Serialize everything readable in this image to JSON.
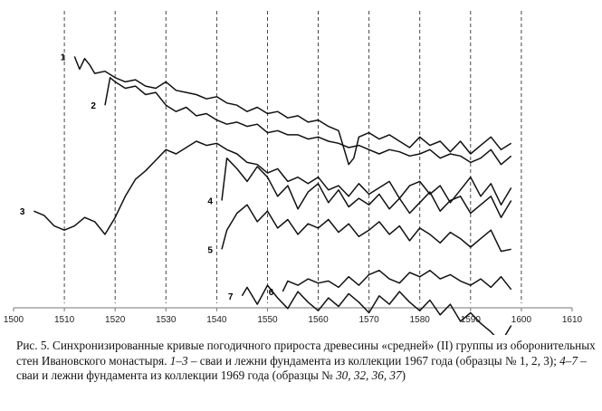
{
  "chart_data": {
    "type": "line",
    "title": "",
    "xlabel": "",
    "ylabel": "",
    "xlim": [
      1500,
      1610
    ],
    "x_ticks": [
      1500,
      1510,
      1520,
      1530,
      1540,
      1550,
      1560,
      1570,
      1580,
      1590,
      1600,
      1610
    ],
    "grid": "vertical dashed lines at each decade from 1510 to 1600",
    "legend": "none; series numbered inline next to their curves",
    "y_units": "relative ring-width index (curves vertically offset, no y axis printed)",
    "series": [
      {
        "label": "1",
        "x": [
          1512,
          1513,
          1514,
          1515,
          1516,
          1518,
          1520,
          1522,
          1524,
          1526,
          1528,
          1530,
          1532,
          1534,
          1536,
          1538,
          1540,
          1542,
          1544,
          1546,
          1548,
          1550,
          1552,
          1554,
          1556,
          1558,
          1560,
          1562,
          1564,
          1566,
          1567,
          1568,
          1570,
          1572,
          1574,
          1576,
          1578,
          1580,
          1582,
          1584,
          1586,
          1588,
          1590,
          1592,
          1594,
          1596,
          1598
        ],
        "y": [
          9.6,
          9.0,
          9.5,
          9.2,
          8.8,
          8.9,
          8.6,
          8.4,
          8.5,
          8.2,
          8.1,
          8.4,
          8.0,
          7.9,
          7.8,
          7.6,
          7.7,
          7.4,
          7.3,
          7.0,
          7.2,
          6.9,
          7.0,
          6.7,
          6.8,
          6.5,
          6.6,
          6.3,
          6.1,
          4.5,
          4.8,
          5.8,
          6.0,
          5.7,
          5.9,
          5.6,
          5.3,
          5.8,
          5.4,
          5.6,
          5.1,
          5.6,
          5.0,
          5.4,
          5.8,
          5.2,
          5.5
        ]
      },
      {
        "label": "2",
        "x": [
          1518,
          1519,
          1520,
          1522,
          1524,
          1526,
          1528,
          1530,
          1532,
          1534,
          1536,
          1538,
          1540,
          1542,
          1544,
          1546,
          1548,
          1550,
          1552,
          1554,
          1556,
          1558,
          1560,
          1562,
          1564,
          1566,
          1568,
          1570,
          1572,
          1574,
          1576,
          1578,
          1580,
          1582,
          1584,
          1586,
          1588,
          1590,
          1592,
          1594,
          1596,
          1598
        ],
        "y": [
          7.3,
          8.6,
          8.4,
          8.1,
          8.2,
          7.8,
          7.9,
          7.3,
          7.0,
          7.2,
          6.8,
          6.9,
          6.6,
          6.4,
          6.5,
          6.3,
          6.4,
          6.0,
          6.1,
          5.9,
          5.9,
          5.7,
          5.8,
          5.6,
          5.5,
          5.3,
          5.4,
          5.2,
          5.0,
          5.2,
          5.1,
          4.9,
          5.0,
          5.2,
          4.8,
          5.0,
          4.9,
          4.6,
          4.8,
          5.2,
          4.5,
          4.9
        ]
      },
      {
        "label": "3",
        "x": [
          1504,
          1506,
          1508,
          1510,
          1512,
          1514,
          1516,
          1518,
          1520,
          1522,
          1524,
          1526,
          1528,
          1530,
          1532,
          1534,
          1536,
          1538,
          1540,
          1542,
          1544,
          1546,
          1548,
          1550,
          1552,
          1554,
          1556,
          1558,
          1560,
          1562,
          1564,
          1566,
          1568,
          1570,
          1572,
          1574,
          1576,
          1578,
          1580,
          1582,
          1584,
          1586,
          1588,
          1590,
          1592,
          1594,
          1596,
          1598
        ],
        "y": [
          2.3,
          2.1,
          1.6,
          1.4,
          1.6,
          2.0,
          1.8,
          1.2,
          2.0,
          3.0,
          3.8,
          4.2,
          4.7,
          5.2,
          5.0,
          5.3,
          5.6,
          5.4,
          5.5,
          5.2,
          5.0,
          4.6,
          4.5,
          4.1,
          4.3,
          3.7,
          3.9,
          3.6,
          3.9,
          3.3,
          3.5,
          3.0,
          3.6,
          3.1,
          3.4,
          3.7,
          2.9,
          3.5,
          3.7,
          3.1,
          3.5,
          2.7,
          3.3,
          3.9,
          3.0,
          3.6,
          2.6,
          3.4
        ]
      },
      {
        "label": "4",
        "x": [
          1541,
          1542,
          1544,
          1546,
          1548,
          1550,
          1552,
          1554,
          1556,
          1558,
          1560,
          1562,
          1564,
          1566,
          1568,
          1570,
          1572,
          1574,
          1576,
          1578,
          1580,
          1582,
          1584,
          1586,
          1588,
          1590,
          1592,
          1594,
          1596,
          1598
        ],
        "y": [
          2.8,
          4.8,
          4.3,
          3.7,
          4.4,
          3.9,
          3.0,
          3.5,
          2.4,
          3.2,
          3.6,
          2.7,
          3.3,
          2.5,
          2.9,
          2.6,
          3.1,
          2.4,
          2.9,
          2.2,
          2.7,
          3.2,
          2.3,
          2.8,
          3.0,
          2.2,
          2.6,
          3.0,
          2.0,
          2.8
        ]
      },
      {
        "label": "5",
        "x": [
          1541,
          1542,
          1544,
          1546,
          1548,
          1550,
          1552,
          1554,
          1556,
          1558,
          1560,
          1562,
          1564,
          1566,
          1568,
          1570,
          1572,
          1574,
          1576,
          1578,
          1580,
          1582,
          1584,
          1586,
          1588,
          1590,
          1592,
          1594,
          1596,
          1598
        ],
        "y": [
          0.5,
          1.4,
          2.2,
          2.6,
          1.8,
          2.3,
          1.5,
          1.9,
          1.2,
          1.7,
          1.5,
          1.9,
          1.3,
          1.7,
          1.1,
          1.4,
          1.8,
          1.2,
          1.6,
          0.9,
          1.5,
          1.2,
          0.8,
          1.3,
          1.0,
          0.6,
          1.0,
          1.4,
          0.4,
          0.5
        ]
      },
      {
        "label": "6",
        "x": [
          1553,
          1554,
          1556,
          1558,
          1560,
          1562,
          1564,
          1566,
          1568,
          1570,
          1572,
          1574,
          1576,
          1578,
          1580,
          1582,
          1584,
          1586,
          1588,
          1590,
          1592,
          1594,
          1596,
          1598
        ],
        "y": [
          -1.5,
          -1.0,
          -1.2,
          -0.9,
          -1.1,
          -1.0,
          -1.3,
          -0.8,
          -1.2,
          -0.7,
          -0.5,
          -0.9,
          -1.1,
          -0.6,
          -0.8,
          -0.5,
          -0.9,
          -0.7,
          -1.0,
          -1.2,
          -0.9,
          -1.3,
          -0.8,
          -1.4
        ]
      },
      {
        "label": "7",
        "x": [
          1545,
          1546,
          1548,
          1550,
          1552,
          1554,
          1556,
          1558,
          1560,
          1562,
          1564,
          1566,
          1568,
          1570,
          1572,
          1574,
          1576,
          1578,
          1580,
          1582,
          1584,
          1586,
          1588,
          1590,
          1592,
          1594,
          1596,
          1598
        ],
        "y": [
          -1.7,
          -1.3,
          -2.1,
          -1.2,
          -1.8,
          -2.3,
          -1.5,
          -2.0,
          -2.4,
          -1.8,
          -2.2,
          -1.6,
          -2.0,
          -2.5,
          -1.7,
          -2.1,
          -1.5,
          -2.0,
          -2.4,
          -1.9,
          -2.6,
          -2.1,
          -2.9,
          -2.5,
          -3.0,
          -3.4,
          -3.9,
          -3.1
        ]
      }
    ]
  },
  "caption": {
    "fig_label": "Рис. 5.",
    "text_1": " Синхронизированные кривые погодичного прироста древесины «средней» (II) группы из оборонительных стен Ивановского монастыря. ",
    "range_1": "1–3",
    "text_2": " – сваи и лежни фундамента из коллекции 1967 года (образцы № 1, 2, 3); ",
    "range_2": "4–7",
    "text_3": " – сваи и лежни фундамента из коллекции 1969 года (образцы № ",
    "samples": "30, 32, 36, 37",
    "text_4": ")"
  },
  "colors": {
    "line": "#111111",
    "grid": "#333333",
    "axis": "#777777"
  }
}
